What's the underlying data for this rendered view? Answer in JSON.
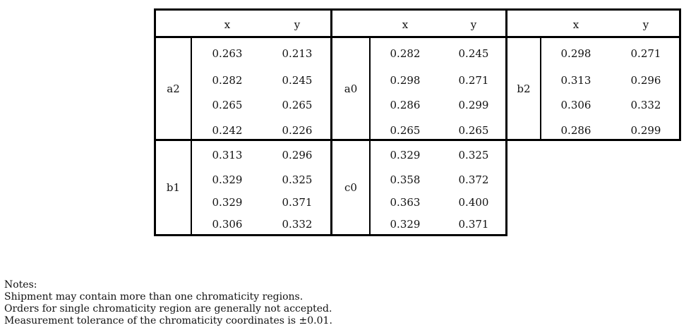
{
  "header": {
    "columns": [
      {
        "x": "x",
        "y": "y"
      },
      {
        "x": "x",
        "y": "y"
      },
      {
        "x": "x",
        "y": "y"
      }
    ]
  },
  "regions": [
    {
      "name": "a2",
      "rows": [
        {
          "x": "0.263",
          "y": "0.213"
        },
        {
          "x": "0.282",
          "y": "0.245"
        },
        {
          "x": "0.265",
          "y": "0.265"
        },
        {
          "x": "0.242",
          "y": "0.226"
        }
      ]
    },
    {
      "name": "a0",
      "rows": [
        {
          "x": "0.282",
          "y": "0.245"
        },
        {
          "x": "0.298",
          "y": "0.271"
        },
        {
          "x": "0.286",
          "y": "0.299"
        },
        {
          "x": "0.265",
          "y": "0.265"
        }
      ]
    },
    {
      "name": "b2",
      "rows": [
        {
          "x": "0.298",
          "y": "0.271"
        },
        {
          "x": "0.313",
          "y": "0.296"
        },
        {
          "x": "0.306",
          "y": "0.332"
        },
        {
          "x": "0.286",
          "y": "0.299"
        }
      ]
    },
    {
      "name": "b1",
      "rows": [
        {
          "x": "0.313",
          "y": "0.296"
        },
        {
          "x": "0.329",
          "y": "0.325"
        },
        {
          "x": "0.329",
          "y": "0.371"
        },
        {
          "x": "0.306",
          "y": "0.332"
        }
      ]
    },
    {
      "name": "c0",
      "rows": [
        {
          "x": "0.329",
          "y": "0.325"
        },
        {
          "x": "0.358",
          "y": "0.372"
        },
        {
          "x": "0.363",
          "y": "0.400"
        },
        {
          "x": "0.329",
          "y": "0.371"
        }
      ]
    }
  ],
  "notes": {
    "title": "Notes:",
    "lines": [
      "Shipment may contain more than one chromaticity regions.",
      "Orders for single chromaticity region are generally not accepted.",
      "Measurement tolerance of the chromaticity coordinates is ±0.01."
    ]
  }
}
